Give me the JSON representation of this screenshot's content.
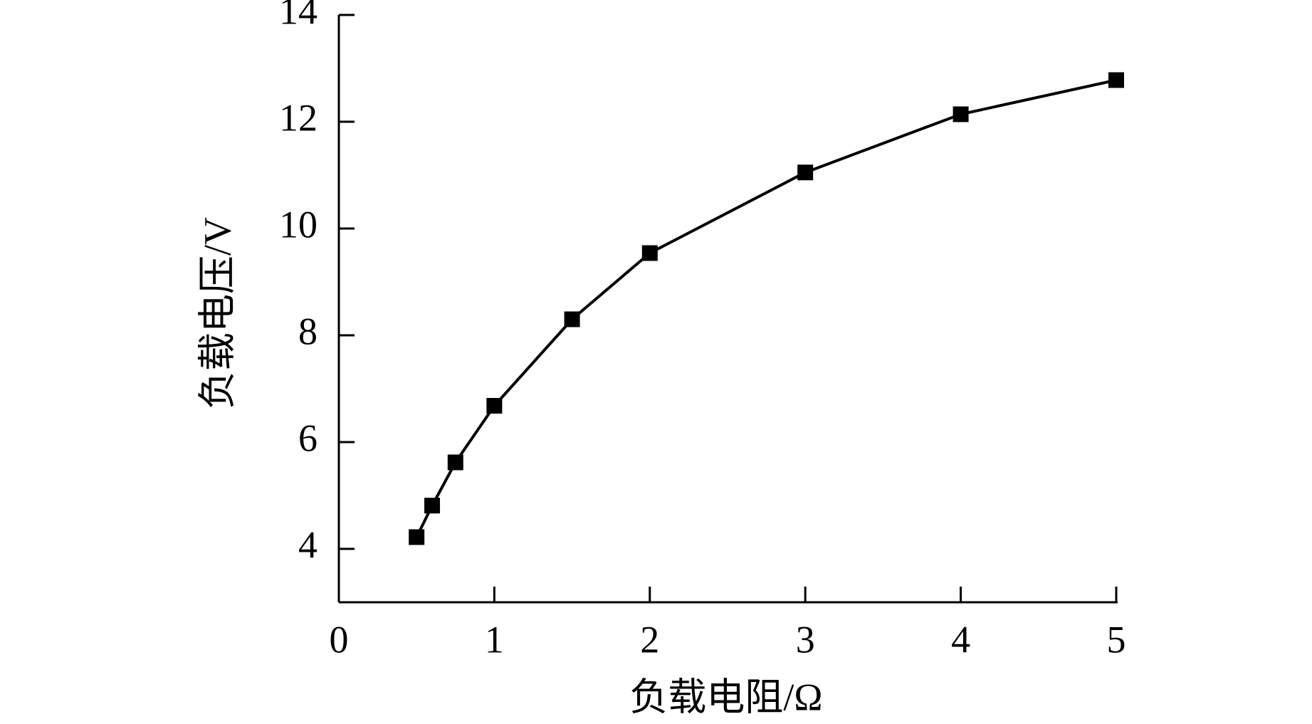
{
  "chart_data": {
    "type": "line",
    "x_label": "负载电阻/Ω",
    "y_label": "负载电压/V",
    "x": [
      0.5,
      0.6,
      0.75,
      1,
      1.5,
      2,
      3,
      4,
      5
    ],
    "series": [
      {
        "color": "#000000",
        "values": [
          4.22,
          4.81,
          5.62,
          6.68,
          8.3,
          9.54,
          11.05,
          12.14,
          12.78
        ]
      }
    ],
    "xlim": [
      0,
      5
    ],
    "xticks": [
      0,
      1,
      2,
      3,
      4,
      5
    ],
    "ylim": [
      3,
      14
    ],
    "yticks": [
      4,
      6,
      8,
      10,
      12,
      14
    ],
    "grid": false
  }
}
